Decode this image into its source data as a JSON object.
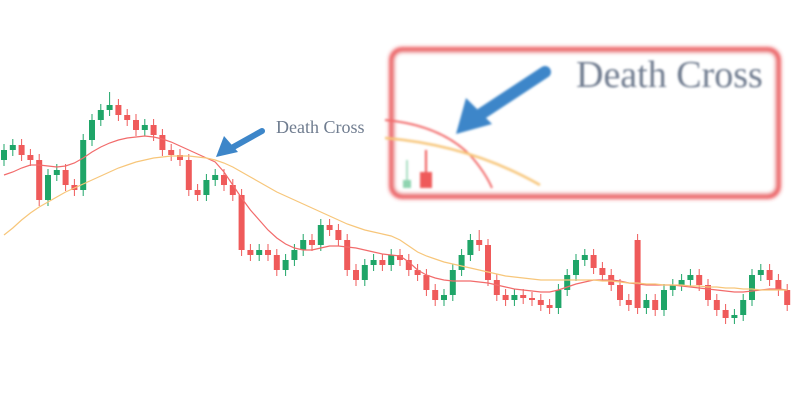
{
  "chart_data": {
    "type": "candlestick",
    "ylim": [
      0,
      400
    ],
    "up_color": "#1fa568",
    "down_color": "#ef5a5a",
    "open": [
      240,
      250,
      255,
      245,
      240,
      200,
      225,
      230,
      215,
      210,
      260,
      280,
      290,
      295,
      285,
      280,
      270,
      275,
      265,
      250,
      245,
      240,
      210,
      205,
      220,
      225,
      215,
      205,
      150,
      145,
      150,
      145,
      130,
      140,
      150,
      160,
      155,
      175,
      170,
      160,
      130,
      120,
      135,
      140,
      135,
      145,
      140,
      130,
      125,
      110,
      100,
      105,
      130,
      145,
      160,
      155,
      120,
      105,
      100,
      105,
      102,
      100,
      95,
      92,
      110,
      125,
      140,
      145,
      132,
      125,
      115,
      100,
      160,
      92,
      100,
      90,
      110,
      115,
      120,
      125,
      115,
      100,
      90,
      82,
      85,
      100,
      125,
      130,
      120,
      110
    ],
    "high": [
      256,
      261,
      261,
      251,
      246,
      231,
      236,
      236,
      221,
      266,
      286,
      296,
      308,
      301,
      291,
      286,
      281,
      281,
      271,
      256,
      251,
      246,
      216,
      226,
      231,
      231,
      221,
      211,
      156,
      156,
      156,
      151,
      146,
      156,
      166,
      166,
      181,
      181,
      176,
      166,
      136,
      141,
      146,
      146,
      151,
      151,
      146,
      136,
      131,
      116,
      111,
      136,
      151,
      166,
      170,
      161,
      126,
      111,
      111,
      111,
      108,
      106,
      101,
      116,
      131,
      146,
      151,
      151,
      138,
      131,
      121,
      106,
      166,
      106,
      106,
      116,
      121,
      126,
      131,
      131,
      121,
      106,
      96,
      91,
      106,
      131,
      136,
      136,
      126,
      116
    ],
    "low": [
      234,
      244,
      239,
      234,
      194,
      194,
      219,
      209,
      204,
      204,
      254,
      274,
      284,
      279,
      274,
      264,
      264,
      259,
      244,
      239,
      234,
      204,
      199,
      199,
      214,
      209,
      199,
      144,
      139,
      139,
      139,
      124,
      124,
      134,
      144,
      149,
      149,
      164,
      154,
      124,
      114,
      114,
      129,
      129,
      129,
      134,
      124,
      119,
      104,
      94,
      94,
      99,
      124,
      139,
      149,
      114,
      99,
      94,
      94,
      96,
      94,
      89,
      86,
      86,
      104,
      119,
      134,
      126,
      119,
      109,
      94,
      89,
      86,
      86,
      84,
      84,
      104,
      109,
      114,
      109,
      94,
      84,
      76,
      76,
      79,
      94,
      119,
      114,
      104,
      89
    ],
    "close": [
      250,
      255,
      245,
      240,
      200,
      225,
      230,
      215,
      210,
      260,
      280,
      290,
      295,
      285,
      280,
      270,
      275,
      265,
      250,
      245,
      240,
      210,
      205,
      220,
      225,
      215,
      205,
      150,
      145,
      150,
      145,
      130,
      140,
      150,
      160,
      155,
      175,
      170,
      160,
      130,
      120,
      135,
      140,
      135,
      145,
      140,
      130,
      125,
      110,
      100,
      105,
      130,
      145,
      160,
      155,
      120,
      105,
      100,
      105,
      102,
      100,
      95,
      92,
      110,
      125,
      140,
      145,
      132,
      125,
      115,
      100,
      95,
      92,
      100,
      90,
      110,
      115,
      120,
      125,
      115,
      100,
      90,
      82,
      85,
      100,
      125,
      130,
      120,
      110,
      95
    ],
    "moving_averages": [
      {
        "color": "#f26b6b",
        "values": [
          225,
          228,
          232,
          235,
          235,
          234,
          233,
          234,
          237,
          242,
          248,
          253,
          257,
          260,
          262,
          263,
          264,
          263,
          261,
          258,
          254,
          250,
          246,
          242,
          238,
          228,
          215,
          202,
          190,
          180,
          170,
          162,
          156,
          152,
          150,
          150,
          152,
          154,
          154,
          153,
          152,
          150,
          148,
          146,
          145,
          144,
          138,
          130,
          125,
          122,
          120,
          119,
          119,
          119,
          118,
          117,
          115,
          113,
          111,
          110,
          109,
          108,
          108,
          110,
          113,
          116,
          118,
          120,
          120,
          120,
          119,
          117,
          116,
          115,
          115,
          115,
          115,
          114,
          113,
          112,
          111,
          110,
          109,
          108,
          108,
          109,
          110,
          111,
          111,
          110
        ]
      },
      {
        "color": "#f7c67a",
        "values": [
          165,
          172,
          180,
          187,
          193,
          198,
          203,
          208,
          212,
          216,
          220,
          224,
          228,
          232,
          235,
          238,
          240,
          242,
          243,
          244,
          244,
          244,
          243,
          242,
          240,
          237,
          233,
          228,
          223,
          218,
          213,
          208,
          204,
          200,
          196,
          192,
          188,
          184,
          180,
          176,
          173,
          170,
          168,
          166,
          164,
          160,
          154,
          148,
          144,
          141,
          138,
          136,
          134,
          132,
          130,
          128,
          126,
          124,
          123,
          122,
          121,
          120,
          120,
          120,
          120,
          120,
          120,
          120,
          119,
          119,
          118,
          117,
          117,
          116,
          116,
          115,
          115,
          115,
          114,
          114,
          113,
          113,
          112,
          112,
          111,
          111,
          110,
          110,
          110,
          110
        ]
      }
    ],
    "annotation": "Death Cross",
    "inset_title": "Death Cross"
  }
}
